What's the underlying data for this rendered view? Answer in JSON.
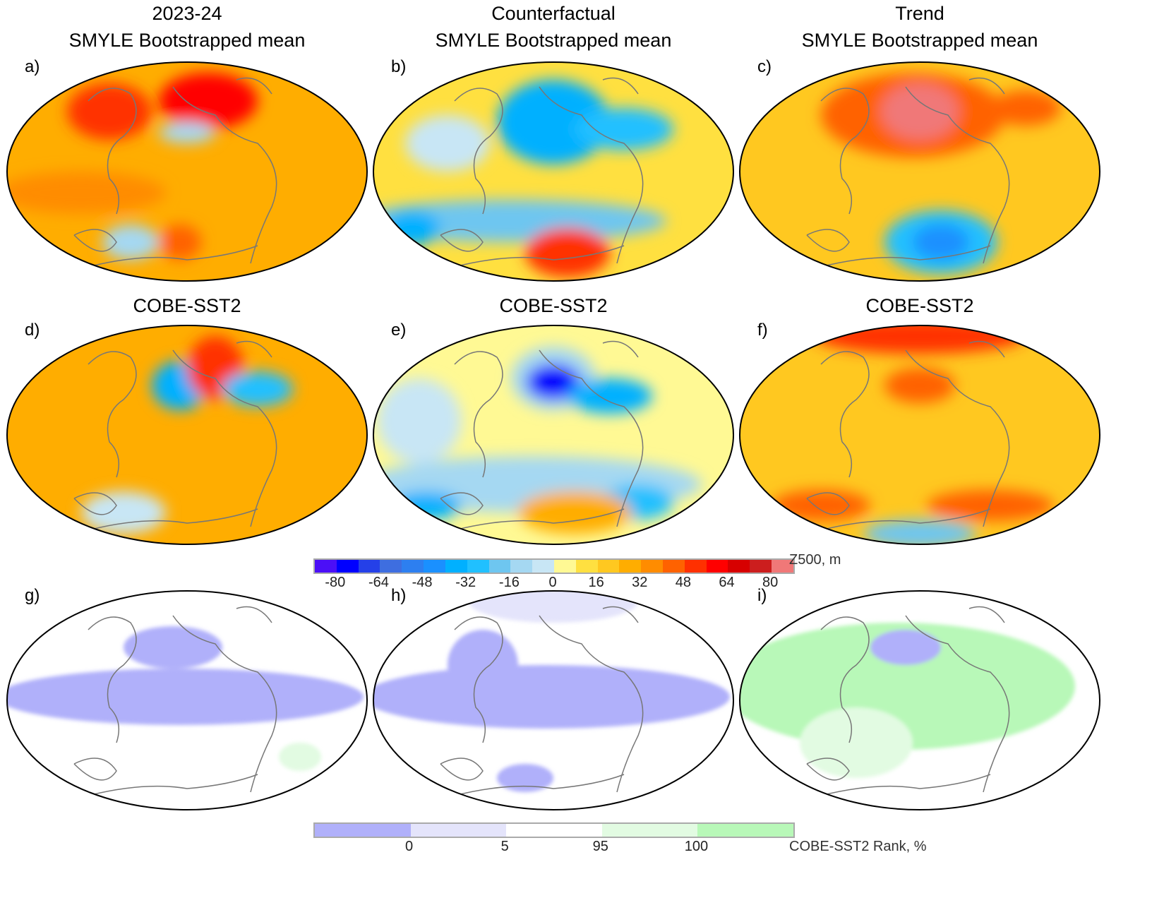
{
  "columns": [
    {
      "title": "2023-24",
      "subtitle": "SMYLE Bootstrapped mean"
    },
    {
      "title": "Counterfactual",
      "subtitle": "SMYLE Bootstrapped mean"
    },
    {
      "title": "Trend",
      "subtitle": "SMYLE Bootstrapped mean"
    }
  ],
  "row2_title": "COBE-SST2",
  "panel_labels": [
    "a)",
    "b)",
    "c)",
    "d)",
    "e)",
    "f)",
    "g)",
    "h)",
    "i)"
  ],
  "colorbar_z500": {
    "label": "Z500, m",
    "ticks": [
      "-80",
      "-64",
      "-48",
      "-32",
      "-16",
      "0",
      "16",
      "32",
      "48",
      "64",
      "80"
    ],
    "colors": [
      "#4b0ff7",
      "#0000ff",
      "#2540e8",
      "#3e6ee0",
      "#2d7ff0",
      "#1a90ff",
      "#00b0ff",
      "#20c0ff",
      "#6ec6f0",
      "#a5d8f2",
      "#c8e6f5",
      "#fff994",
      "#ffe040",
      "#ffc820",
      "#ffad00",
      "#ff8c00",
      "#ff6200",
      "#ff3000",
      "#ff0000",
      "#d70000",
      "#cc1e1e",
      "#f07878"
    ]
  },
  "colorbar_rank": {
    "label": "COBE-SST2 Rank, %",
    "ticks": [
      "0",
      "5",
      "95",
      "100"
    ],
    "colors": [
      "#b0b0fa",
      "#e4e4fb",
      "#ffffff",
      "#e2fbe2",
      "#b8f8b8"
    ]
  }
}
